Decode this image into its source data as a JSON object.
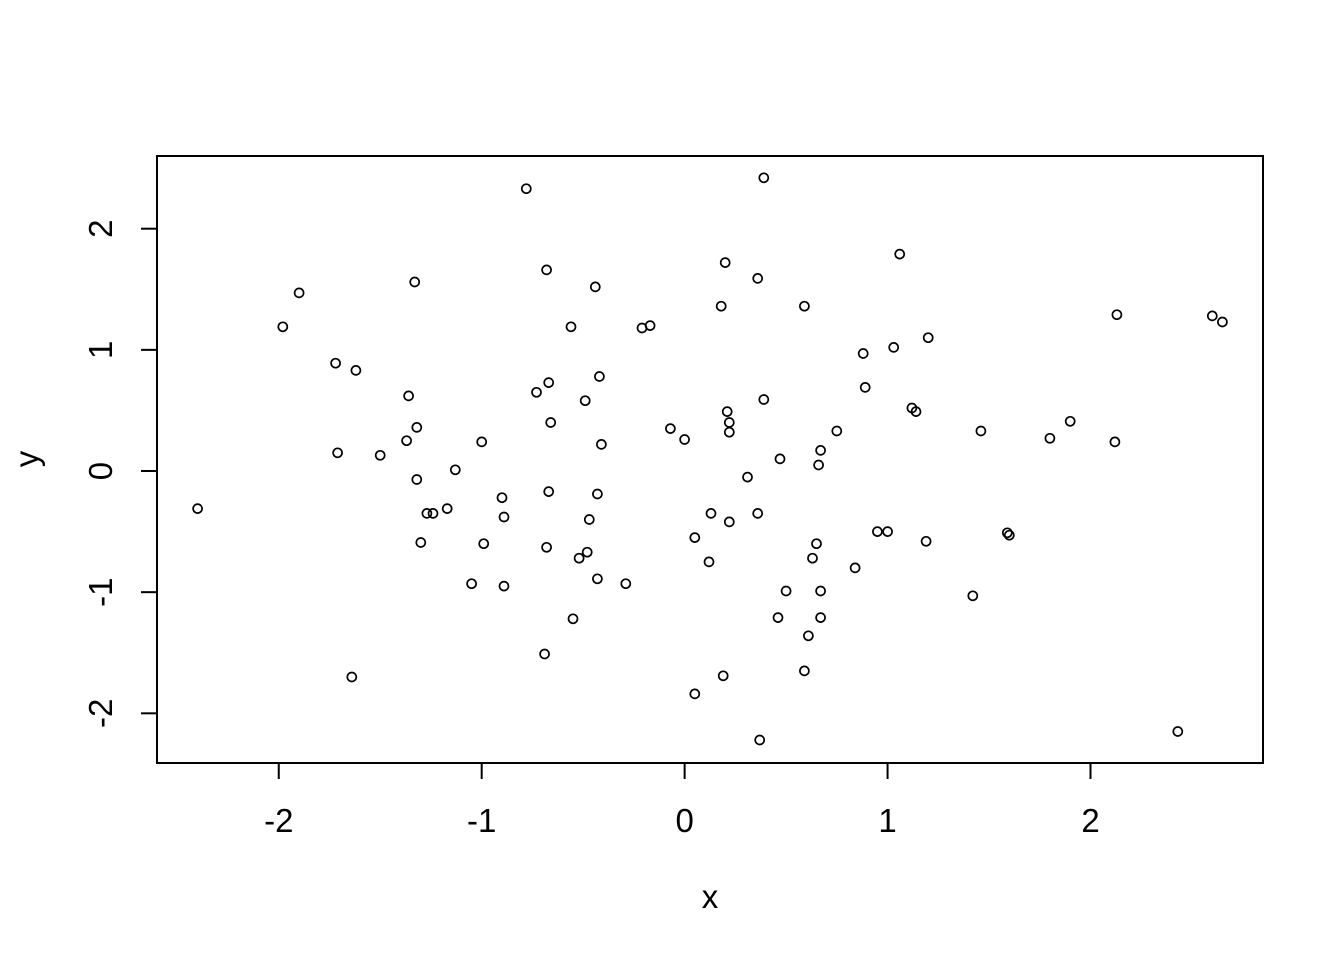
{
  "figure": {
    "background_color": "#ffffff",
    "foreground_color": "#000000"
  },
  "chart_data": {
    "type": "scatter",
    "title": "",
    "xlabel": "x",
    "ylabel": "y",
    "marker": "open-circle",
    "grid": false,
    "legend_position": "none",
    "n_points": 100,
    "xlim": [
      -2.6,
      2.85
    ],
    "ylim": [
      -2.41,
      2.6
    ],
    "x_ticks": [
      -2,
      -1,
      0,
      1,
      2
    ],
    "x_tick_labels": [
      "-2",
      "-1",
      "0",
      "1",
      "2"
    ],
    "y_ticks": [
      -2,
      -1,
      0,
      1,
      2
    ],
    "y_tick_labels": [
      "-2",
      "-1",
      "0",
      "1",
      "2"
    ],
    "points": [
      [
        -2.4,
        -0.31
      ],
      [
        -1.98,
        1.19
      ],
      [
        -1.9,
        1.47
      ],
      [
        -1.72,
        0.89
      ],
      [
        -1.62,
        0.83
      ],
      [
        -1.71,
        0.15
      ],
      [
        -1.5,
        0.13
      ],
      [
        -1.64,
        -1.7
      ],
      [
        -1.36,
        0.62
      ],
      [
        -1.33,
        1.56
      ],
      [
        -1.32,
        0.36
      ],
      [
        -1.37,
        0.25
      ],
      [
        -1.0,
        0.24
      ],
      [
        -1.13,
        0.01
      ],
      [
        -1.32,
        -0.07
      ],
      [
        -1.27,
        -0.35
      ],
      [
        -1.24,
        -0.35
      ],
      [
        -1.17,
        -0.31
      ],
      [
        -0.9,
        -0.22
      ],
      [
        -0.89,
        -0.38
      ],
      [
        -1.3,
        -0.59
      ],
      [
        -0.99,
        -0.6
      ],
      [
        -1.05,
        -0.93
      ],
      [
        -0.89,
        -0.95
      ],
      [
        -0.78,
        2.33
      ],
      [
        -0.68,
        1.66
      ],
      [
        -0.44,
        1.52
      ],
      [
        -0.56,
        1.19
      ],
      [
        -0.21,
        1.18
      ],
      [
        -0.17,
        1.2
      ],
      [
        -0.67,
        0.73
      ],
      [
        -0.73,
        0.65
      ],
      [
        -0.42,
        0.78
      ],
      [
        -0.49,
        0.58
      ],
      [
        -0.66,
        0.4
      ],
      [
        -0.41,
        0.22
      ],
      [
        -0.67,
        -0.17
      ],
      [
        -0.43,
        -0.19
      ],
      [
        -0.47,
        -0.4
      ],
      [
        -0.68,
        -0.63
      ],
      [
        -0.52,
        -0.72
      ],
      [
        -0.48,
        -0.67
      ],
      [
        -0.43,
        -0.89
      ],
      [
        -0.29,
        -0.93
      ],
      [
        -0.55,
        -1.22
      ],
      [
        -0.69,
        -1.51
      ],
      [
        -0.07,
        0.35
      ],
      [
        0.0,
        0.26
      ],
      [
        0.21,
        0.49
      ],
      [
        0.22,
        0.4
      ],
      [
        0.22,
        0.32
      ],
      [
        0.39,
        0.59
      ],
      [
        0.47,
        0.1
      ],
      [
        0.31,
        -0.05
      ],
      [
        0.67,
        0.17
      ],
      [
        0.66,
        0.05
      ],
      [
        0.75,
        0.33
      ],
      [
        0.39,
        2.42
      ],
      [
        0.2,
        1.72
      ],
      [
        0.36,
        1.59
      ],
      [
        0.18,
        1.36
      ],
      [
        0.59,
        1.36
      ],
      [
        1.06,
        1.79
      ],
      [
        0.88,
        0.97
      ],
      [
        1.03,
        1.02
      ],
      [
        1.2,
        1.1
      ],
      [
        0.89,
        0.69
      ],
      [
        1.12,
        0.52
      ],
      [
        1.14,
        0.49
      ],
      [
        1.46,
        0.33
      ],
      [
        1.8,
        0.27
      ],
      [
        1.9,
        0.41
      ],
      [
        2.12,
        0.24
      ],
      [
        2.13,
        1.29
      ],
      [
        2.6,
        1.28
      ],
      [
        2.65,
        1.23
      ],
      [
        0.05,
        -0.55
      ],
      [
        0.13,
        -0.35
      ],
      [
        0.22,
        -0.42
      ],
      [
        0.36,
        -0.35
      ],
      [
        0.12,
        -0.75
      ],
      [
        0.65,
        -0.6
      ],
      [
        0.63,
        -0.72
      ],
      [
        0.84,
        -0.8
      ],
      [
        0.95,
        -0.5
      ],
      [
        1.0,
        -0.5
      ],
      [
        0.5,
        -0.99
      ],
      [
        0.67,
        -0.99
      ],
      [
        0.46,
        -1.21
      ],
      [
        0.67,
        -1.21
      ],
      [
        0.61,
        -1.36
      ],
      [
        0.59,
        -1.65
      ],
      [
        0.19,
        -1.69
      ],
      [
        0.05,
        -1.84
      ],
      [
        0.37,
        -2.22
      ],
      [
        1.19,
        -0.58
      ],
      [
        1.59,
        -0.51
      ],
      [
        1.6,
        -0.53
      ],
      [
        1.42,
        -1.03
      ],
      [
        2.43,
        -2.15
      ]
    ]
  }
}
